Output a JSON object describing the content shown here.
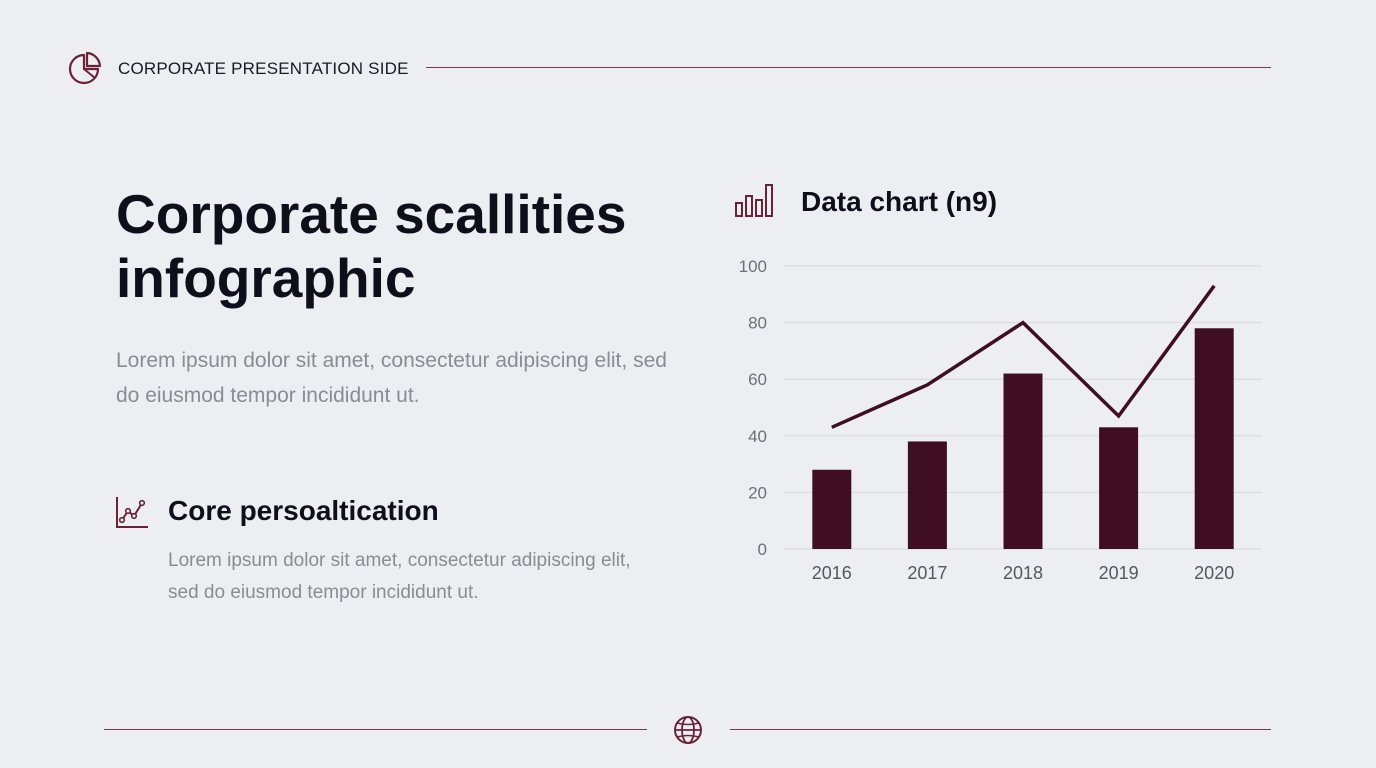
{
  "header": {
    "title": "CORPORATE PRESENTATION SIDE",
    "icon": "pie-chart-icon"
  },
  "main": {
    "title": "Corporate scallities infographic",
    "intro": "Lorem ipsum dolor sit amet, consectetur adipiscing elit, sed do eiusmod tempor incididunt ut."
  },
  "feature": {
    "icon": "line-chart-icon",
    "title": "Core persoaltication",
    "text": "Lorem ipsum dolor sit amet, consectetur adipiscing elit, sed do eiusmod tempor incididunt ut."
  },
  "chart_header": {
    "icon": "bar-chart-icon",
    "title": "Data chart (n9)"
  },
  "footer": {
    "icon": "globe-icon"
  },
  "colors": {
    "accent": "#3f0e22",
    "line": "#7a3a4a",
    "grid": "#d6d8dc"
  },
  "chart_data": {
    "type": "bar",
    "title": "Data chart (n9)",
    "categories": [
      "2016",
      "2017",
      "2018",
      "2019",
      "2020"
    ],
    "series": [
      {
        "name": "bars",
        "type": "bar",
        "values": [
          28,
          38,
          62,
          43,
          78
        ]
      },
      {
        "name": "trend",
        "type": "line",
        "values": [
          43,
          58,
          80,
          47,
          93
        ]
      }
    ],
    "yticks": [
      0,
      20,
      40,
      60,
      80,
      100
    ],
    "ylim": [
      0,
      100
    ],
    "xlabel": "",
    "ylabel": "",
    "grid": true
  }
}
